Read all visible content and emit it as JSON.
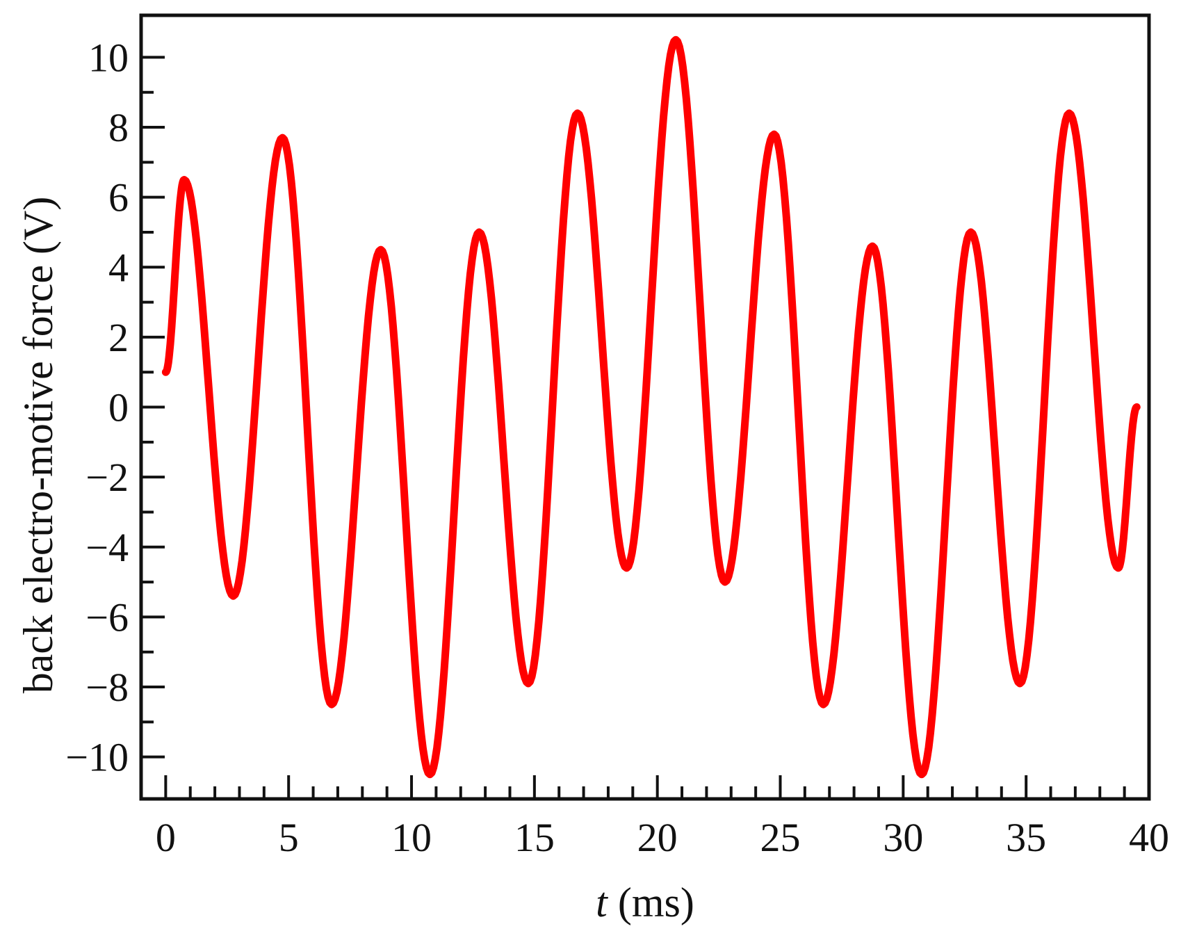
{
  "chart_data": {
    "type": "line",
    "title": "",
    "xlabel_var": "t",
    "xlabel_unit": " (ms)",
    "ylabel": "back electro-motive force (V)",
    "xlim": [
      -1,
      40
    ],
    "ylim": [
      -11.2,
      11.2
    ],
    "x_ticks": [
      0,
      5,
      10,
      15,
      20,
      25,
      30,
      35,
      40
    ],
    "x_tick_labels": [
      "0",
      "5",
      "10",
      "15",
      "20",
      "25",
      "30",
      "35",
      "40"
    ],
    "x_minor_step": 1,
    "y_ticks": [
      -10,
      -8,
      -6,
      -4,
      -2,
      0,
      2,
      4,
      6,
      8,
      10
    ],
    "y_tick_labels": [
      "−10",
      "−8",
      "−6",
      "−4",
      "−2",
      "0",
      "2",
      "4",
      "6",
      "8",
      "10"
    ],
    "y_minor_step": 1,
    "grid": false,
    "legend": "none",
    "series": [
      {
        "color": "#ff0000",
        "x": [
          0,
          0.75,
          2.75,
          4.75,
          6.75,
          8.75,
          10.75,
          12.75,
          14.75,
          16.75,
          18.75,
          20.75,
          22.75,
          24.75,
          26.75,
          28.75,
          30.75,
          32.75,
          34.75,
          36.75,
          38.75,
          39.5
        ],
        "y": [
          1.0,
          6.5,
          -5.4,
          7.7,
          -8.5,
          4.5,
          -10.5,
          5.0,
          -7.9,
          8.4,
          -4.6,
          10.5,
          -5.0,
          7.8,
          -8.5,
          4.6,
          -10.5,
          5.0,
          -7.9,
          8.4,
          -4.6,
          0.0
        ]
      }
    ]
  }
}
